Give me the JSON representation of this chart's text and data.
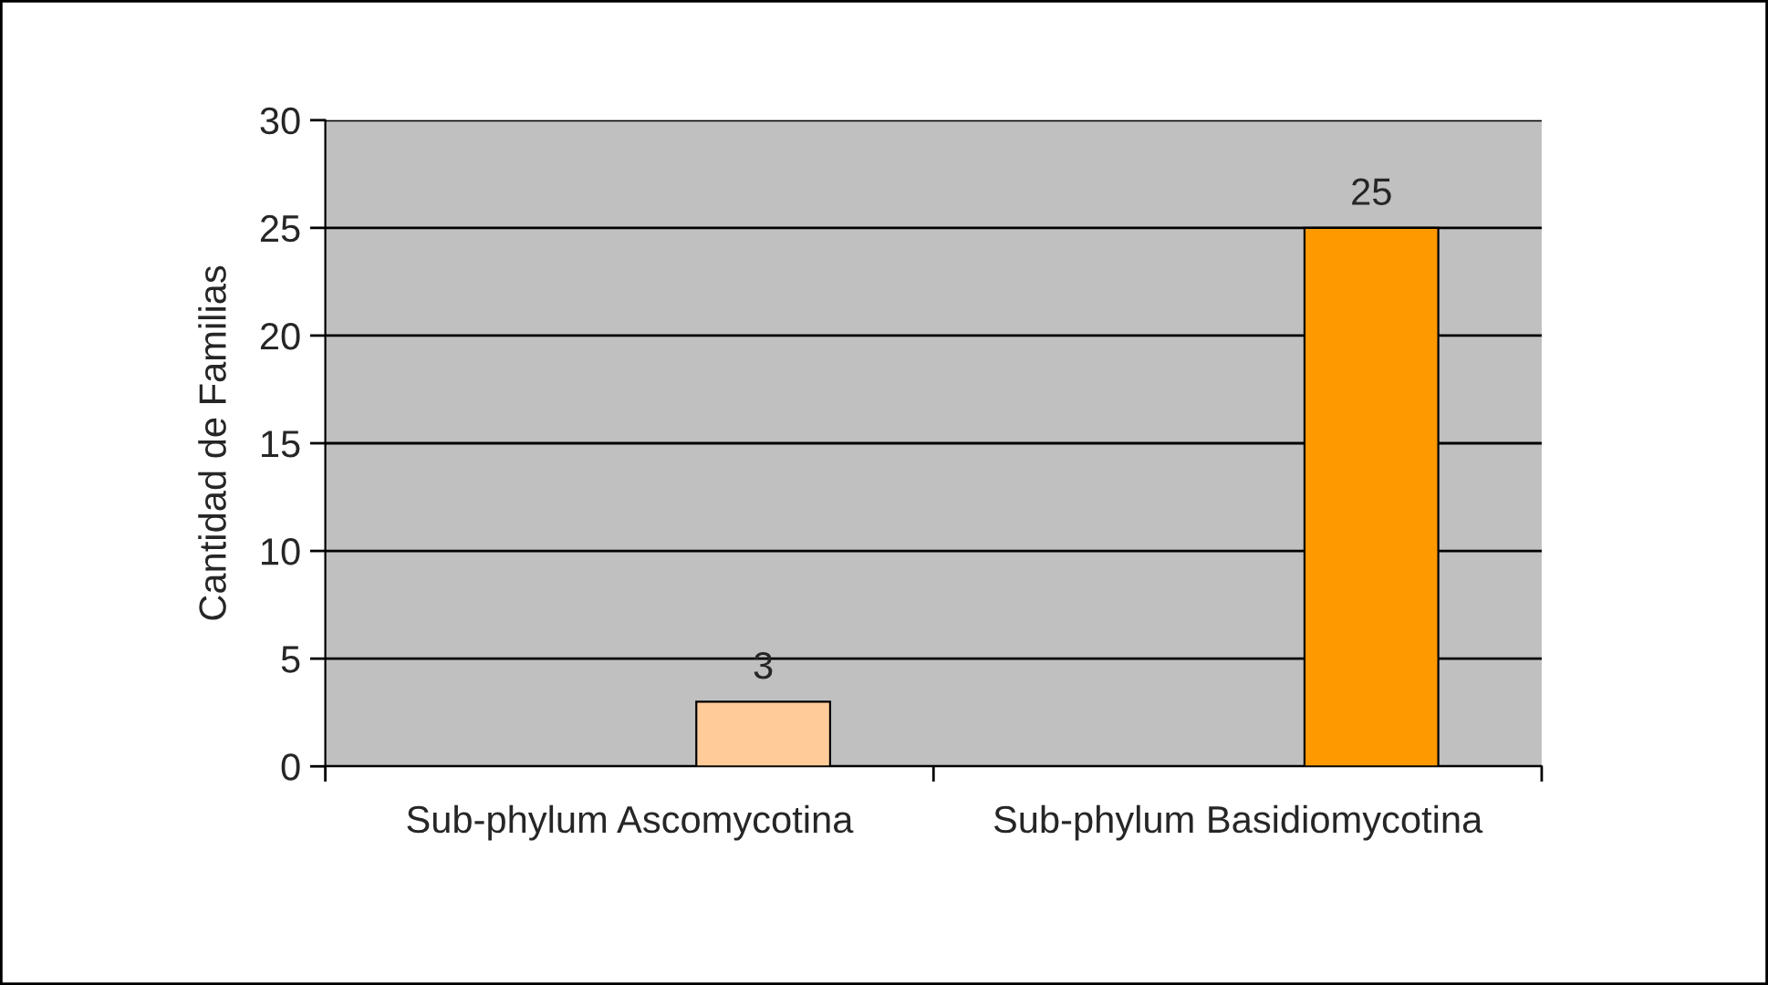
{
  "chart_data": {
    "type": "bar",
    "ylabel": "Cantidad de Familias",
    "categories": [
      "Sub-phylum Ascomycotina",
      "Sub-phylum Basidiomycotina"
    ],
    "values": [
      3,
      25
    ],
    "colors": [
      "#ffcc99",
      "#ff9900"
    ],
    "ylim": [
      0,
      30
    ],
    "yticks": [
      0,
      5,
      10,
      15,
      20,
      25,
      30
    ],
    "grid": "y",
    "data_labels": true,
    "legend": false
  }
}
